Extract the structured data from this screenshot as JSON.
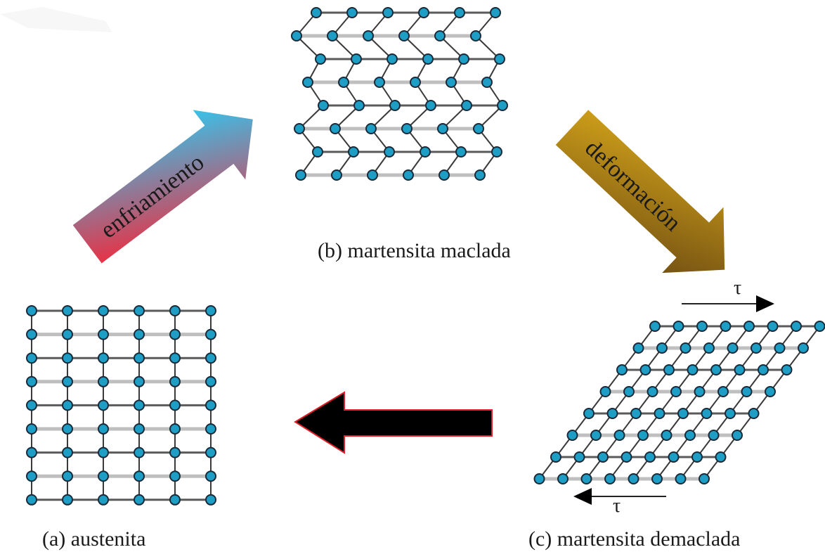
{
  "captions": {
    "austenite": "(a) austenita",
    "twinned": "(b) martensita maclada",
    "detwinned": "(c) martensita demaclada"
  },
  "arrows": {
    "cooling": {
      "label": "enfriamiento",
      "gradient_start": "#ff1e2e",
      "gradient_end": "#22d4ff"
    },
    "deformation": {
      "label": "deformación",
      "gradient_start": "#d9a81a",
      "gradient_end": "#6b4a12"
    },
    "return": {
      "label": "",
      "fill": "#000000",
      "outline": "#e0202a"
    }
  },
  "stress": {
    "top_symbol": "τ",
    "bottom_symbol": "τ"
  },
  "colors": {
    "atom": "#1e9ec4",
    "atom_outline": "#1a2a38",
    "bond": "#3a3a3a",
    "background": "#ffffff"
  },
  "lattices": {
    "austenite": {
      "rows": 9,
      "cols": 6,
      "shape": "square"
    },
    "twinned": {
      "rows": 8,
      "cols": 6,
      "shape": "zigzag-twinned"
    },
    "detwinned": {
      "rows": 8,
      "cols": 8,
      "shape": "sheared-parallelogram"
    }
  }
}
